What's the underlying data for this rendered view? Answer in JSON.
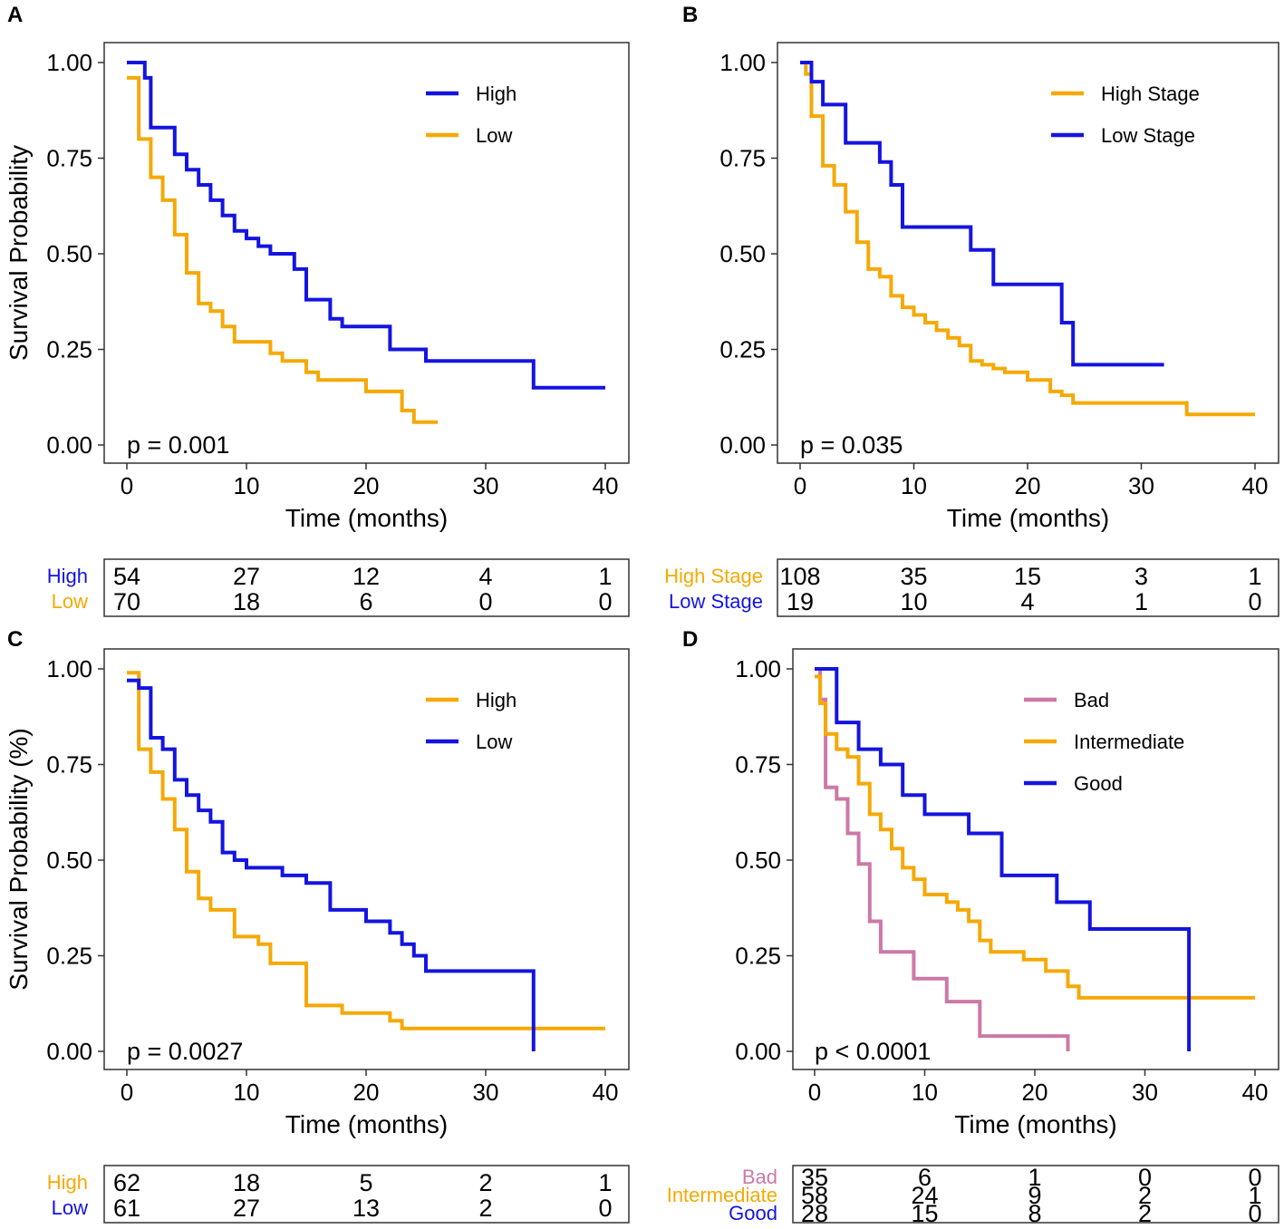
{
  "colors": {
    "blue": "#1414e0",
    "orange": "#f5a906",
    "pink": "#cc79a7",
    "frame": "#333333"
  },
  "chart_data": [
    {
      "panel": "A",
      "type": "line",
      "subtype": "kaplan-meier step",
      "xlabel": "Time (months)",
      "ylabel": "Survival Probability",
      "xlim": [
        0,
        40
      ],
      "ylim": [
        0,
        1
      ],
      "xticks": [
        "0",
        "10",
        "20",
        "30",
        "40"
      ],
      "yticks": [
        "0.00",
        "0.25",
        "0.50",
        "0.75",
        "1.00"
      ],
      "pvalue": "p = 0.001",
      "series": [
        {
          "name": "High",
          "color": "#1414e0",
          "x": [
            0,
            1,
            1.5,
            2,
            4,
            5,
            6,
            7,
            8,
            9,
            10,
            11,
            12,
            14,
            15,
            17,
            18,
            22,
            25,
            34,
            40
          ],
          "y": [
            1.0,
            1.0,
            0.96,
            0.83,
            0.76,
            0.72,
            0.68,
            0.64,
            0.6,
            0.56,
            0.54,
            0.52,
            0.5,
            0.46,
            0.38,
            0.33,
            0.31,
            0.25,
            0.22,
            0.15,
            0.15
          ]
        },
        {
          "name": "Low",
          "color": "#f5a906",
          "x": [
            0,
            1,
            2,
            3,
            4,
            5,
            6,
            7,
            8,
            9,
            12,
            13,
            15,
            16,
            19,
            20,
            23,
            24,
            26
          ],
          "y": [
            0.96,
            0.8,
            0.7,
            0.64,
            0.55,
            0.45,
            0.37,
            0.35,
            0.31,
            0.27,
            0.24,
            0.22,
            0.19,
            0.17,
            0.17,
            0.14,
            0.09,
            0.06,
            0.06
          ]
        }
      ],
      "risk_table": [
        {
          "label": "High",
          "color": "#1414e0",
          "values": [
            "54",
            "27",
            "12",
            "4",
            "1"
          ]
        },
        {
          "label": "Low",
          "color": "#f5a906",
          "values": [
            "70",
            "18",
            "6",
            "0",
            "0"
          ]
        }
      ]
    },
    {
      "panel": "B",
      "type": "line",
      "subtype": "kaplan-meier step",
      "xlabel": "Time (months)",
      "ylabel": "",
      "xlim": [
        0,
        40
      ],
      "ylim": [
        0,
        1
      ],
      "xticks": [
        "0",
        "10",
        "20",
        "30",
        "40"
      ],
      "yticks": [
        "0.00",
        "0.25",
        "0.50",
        "0.75",
        "1.00"
      ],
      "pvalue": "p = 0.035",
      "series": [
        {
          "name": "High Stage",
          "color": "#f5a906",
          "x": [
            0,
            0.5,
            1,
            2,
            3,
            4,
            5,
            6,
            7,
            8,
            9,
            10,
            11,
            12,
            13,
            14,
            15,
            16,
            17,
            18,
            20,
            22,
            23,
            24,
            34,
            40
          ],
          "y": [
            1.0,
            0.97,
            0.86,
            0.73,
            0.68,
            0.61,
            0.53,
            0.46,
            0.44,
            0.39,
            0.36,
            0.34,
            0.32,
            0.3,
            0.28,
            0.26,
            0.22,
            0.21,
            0.2,
            0.19,
            0.17,
            0.14,
            0.13,
            0.11,
            0.08,
            0.08
          ]
        },
        {
          "name": "Low Stage",
          "color": "#1414e0",
          "x": [
            0,
            1,
            2,
            4,
            7,
            8,
            9,
            15,
            17,
            23,
            24,
            32
          ],
          "y": [
            1.0,
            0.95,
            0.89,
            0.79,
            0.74,
            0.68,
            0.57,
            0.51,
            0.42,
            0.32,
            0.21,
            0.21
          ]
        }
      ],
      "risk_table": [
        {
          "label": "High  Stage",
          "color": "#f5a906",
          "values": [
            "108",
            "35",
            "15",
            "3",
            "1"
          ]
        },
        {
          "label": "Low  Stage",
          "color": "#1414e0",
          "values": [
            "19",
            "10",
            "4",
            "1",
            "0"
          ]
        }
      ]
    },
    {
      "panel": "C",
      "type": "line",
      "subtype": "kaplan-meier step",
      "xlabel": "Time (months)",
      "ylabel": "Survival Probability (%)",
      "xlim": [
        0,
        40
      ],
      "ylim": [
        0,
        1
      ],
      "xticks": [
        "0",
        "10",
        "20",
        "30",
        "40"
      ],
      "yticks": [
        "0.00",
        "0.25",
        "0.50",
        "0.75",
        "1.00"
      ],
      "pvalue": "p = 0.0027",
      "series": [
        {
          "name": "High",
          "color": "#f5a906",
          "x": [
            0,
            1,
            2,
            3,
            4,
            5,
            6,
            7,
            9,
            11,
            12,
            15,
            18,
            22,
            23,
            40
          ],
          "y": [
            0.99,
            0.79,
            0.73,
            0.66,
            0.58,
            0.47,
            0.4,
            0.37,
            0.3,
            0.28,
            0.23,
            0.12,
            0.1,
            0.08,
            0.06,
            0.06
          ]
        },
        {
          "name": "Low",
          "color": "#1414e0",
          "x": [
            0,
            1,
            2,
            3,
            4,
            5,
            6,
            7,
            8,
            9,
            10,
            13,
            15,
            17,
            20,
            22,
            23,
            24,
            25,
            34
          ],
          "y": [
            0.97,
            0.95,
            0.82,
            0.79,
            0.71,
            0.67,
            0.63,
            0.6,
            0.52,
            0.5,
            0.48,
            0.46,
            0.44,
            0.37,
            0.34,
            0.31,
            0.28,
            0.25,
            0.21,
            0.0
          ]
        }
      ],
      "risk_table": [
        {
          "label": "High",
          "color": "#f5a906",
          "values": [
            "62",
            "18",
            "5",
            "2",
            "1"
          ]
        },
        {
          "label": "Low",
          "color": "#1414e0",
          "values": [
            "61",
            "27",
            "13",
            "2",
            "0"
          ]
        }
      ]
    },
    {
      "panel": "D",
      "type": "line",
      "subtype": "kaplan-meier step",
      "xlabel": "Time (months)",
      "ylabel": "",
      "xlim": [
        0,
        40
      ],
      "ylim": [
        0,
        1
      ],
      "xticks": [
        "0",
        "10",
        "20",
        "30",
        "40"
      ],
      "yticks": [
        "0.00",
        "0.25",
        "0.50",
        "0.75",
        "1.00"
      ],
      "pvalue": "p < 0.0001",
      "series": [
        {
          "name": "Bad",
          "color": "#cc79a7",
          "x": [
            0,
            0.5,
            1,
            2,
            3,
            4,
            5,
            6,
            9,
            12,
            15,
            23
          ],
          "y": [
            1.0,
            0.92,
            0.69,
            0.66,
            0.57,
            0.49,
            0.34,
            0.26,
            0.19,
            0.13,
            0.04,
            0.0
          ]
        },
        {
          "name": "Intermediate",
          "color": "#f5a906",
          "x": [
            0,
            0.5,
            1,
            2,
            3,
            4,
            5,
            6,
            7,
            8,
            9,
            10,
            12,
            13,
            14,
            15,
            16,
            19,
            21,
            23,
            24,
            40
          ],
          "y": [
            0.98,
            0.91,
            0.83,
            0.79,
            0.77,
            0.7,
            0.62,
            0.58,
            0.53,
            0.48,
            0.45,
            0.41,
            0.39,
            0.37,
            0.34,
            0.29,
            0.26,
            0.24,
            0.21,
            0.17,
            0.14,
            0.14
          ]
        },
        {
          "name": "Good",
          "color": "#1414e0",
          "x": [
            0,
            2,
            4,
            6,
            8,
            10,
            14,
            17,
            22,
            25,
            34
          ],
          "y": [
            1.0,
            0.86,
            0.79,
            0.75,
            0.67,
            0.62,
            0.57,
            0.46,
            0.39,
            0.32,
            0.0
          ]
        }
      ],
      "risk_table": [
        {
          "label": "Bad",
          "color": "#cc79a7",
          "values": [
            "35",
            "6",
            "1",
            "0",
            "0"
          ]
        },
        {
          "label": "Intermediate",
          "color": "#f5a906",
          "values": [
            "58",
            "24",
            "9",
            "2",
            "1"
          ]
        },
        {
          "label": "Good",
          "color": "#1414e0",
          "values": [
            "28",
            "15",
            "8",
            "2",
            "0"
          ]
        }
      ]
    }
  ]
}
